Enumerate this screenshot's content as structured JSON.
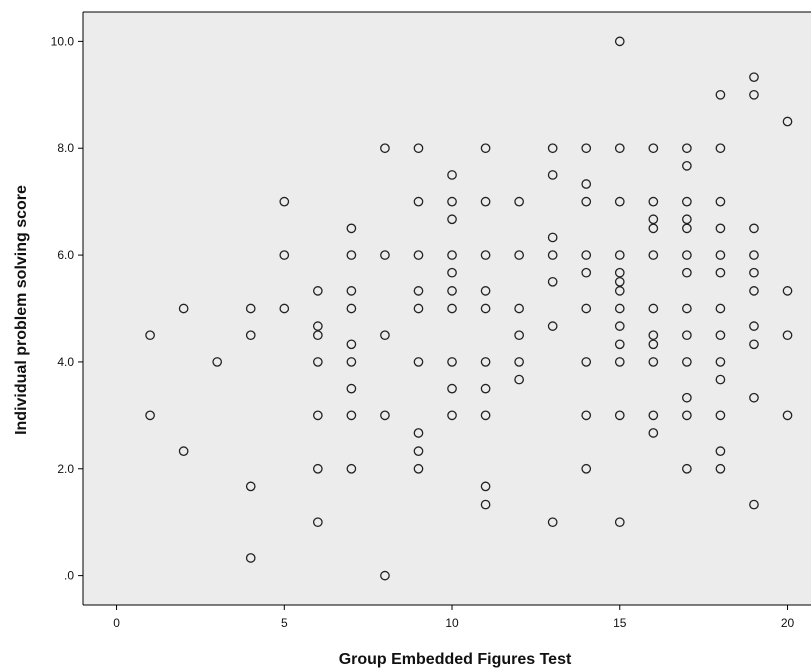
{
  "chart_data": {
    "type": "scatter",
    "xlabel": "Group Embedded Figures Test",
    "ylabel": "Individual problem solving score",
    "xlim": [
      -1,
      20.7
    ],
    "ylim": [
      -0.55,
      10.55
    ],
    "xticks": [
      0,
      5,
      10,
      15,
      20
    ],
    "xtick_labels": [
      "0",
      "5",
      "10",
      "15",
      "20"
    ],
    "yticks": [
      0,
      2,
      4,
      6,
      8,
      10
    ],
    "ytick_labels": [
      ".0",
      "2.0",
      "4.0",
      "6.0",
      "8.0",
      "10.0"
    ],
    "grid": false,
    "plot_background": "#ececec",
    "marker": "hollow-circle",
    "points": [
      [
        1,
        4.5
      ],
      [
        1,
        3.0
      ],
      [
        2,
        5.0
      ],
      [
        2,
        2.33
      ],
      [
        3,
        4.0
      ],
      [
        4,
        5.0
      ],
      [
        4,
        4.5
      ],
      [
        4,
        1.67
      ],
      [
        4,
        0.33
      ],
      [
        5,
        7.0
      ],
      [
        5,
        6.0
      ],
      [
        5,
        5.0
      ],
      [
        6,
        5.33
      ],
      [
        6,
        4.67
      ],
      [
        6,
        4.5
      ],
      [
        6,
        4.0
      ],
      [
        6,
        3.0
      ],
      [
        6,
        2.0
      ],
      [
        6,
        1.0
      ],
      [
        7,
        6.5
      ],
      [
        7,
        6.0
      ],
      [
        7,
        5.33
      ],
      [
        7,
        5.0
      ],
      [
        7,
        4.33
      ],
      [
        7,
        4.0
      ],
      [
        7,
        3.5
      ],
      [
        7,
        3.0
      ],
      [
        7,
        2.0
      ],
      [
        8,
        8.0
      ],
      [
        8,
        6.0
      ],
      [
        8,
        4.5
      ],
      [
        8,
        3.0
      ],
      [
        8,
        0.0
      ],
      [
        9,
        8.0
      ],
      [
        9,
        7.0
      ],
      [
        9,
        6.0
      ],
      [
        9,
        5.33
      ],
      [
        9,
        5.0
      ],
      [
        9,
        4.0
      ],
      [
        9,
        2.67
      ],
      [
        9,
        2.33
      ],
      [
        9,
        2.0
      ],
      [
        10,
        7.5
      ],
      [
        10,
        7.0
      ],
      [
        10,
        6.67
      ],
      [
        10,
        6.0
      ],
      [
        10,
        5.67
      ],
      [
        10,
        5.33
      ],
      [
        10,
        5.0
      ],
      [
        10,
        4.0
      ],
      [
        10,
        3.5
      ],
      [
        10,
        3.0
      ],
      [
        11,
        8.0
      ],
      [
        11,
        7.0
      ],
      [
        11,
        6.0
      ],
      [
        11,
        5.33
      ],
      [
        11,
        5.0
      ],
      [
        11,
        4.0
      ],
      [
        11,
        3.5
      ],
      [
        11,
        3.0
      ],
      [
        11,
        1.67
      ],
      [
        11,
        1.33
      ],
      [
        12,
        7.0
      ],
      [
        12,
        6.0
      ],
      [
        12,
        5.0
      ],
      [
        12,
        4.5
      ],
      [
        12,
        4.0
      ],
      [
        12,
        3.67
      ],
      [
        13,
        8.0
      ],
      [
        13,
        7.5
      ],
      [
        13,
        6.33
      ],
      [
        13,
        6.0
      ],
      [
        13,
        5.5
      ],
      [
        13,
        4.67
      ],
      [
        13,
        1.0
      ],
      [
        14,
        8.0
      ],
      [
        14,
        7.33
      ],
      [
        14,
        7.0
      ],
      [
        14,
        6.0
      ],
      [
        14,
        5.67
      ],
      [
        14,
        5.0
      ],
      [
        14,
        4.0
      ],
      [
        14,
        3.0
      ],
      [
        14,
        2.0
      ],
      [
        15,
        10.0
      ],
      [
        15,
        8.0
      ],
      [
        15,
        7.0
      ],
      [
        15,
        6.0
      ],
      [
        15,
        5.67
      ],
      [
        15,
        5.5
      ],
      [
        15,
        5.33
      ],
      [
        15,
        5.0
      ],
      [
        15,
        4.67
      ],
      [
        15,
        4.33
      ],
      [
        15,
        4.0
      ],
      [
        15,
        3.0
      ],
      [
        15,
        1.0
      ],
      [
        16,
        8.0
      ],
      [
        16,
        7.0
      ],
      [
        16,
        6.67
      ],
      [
        16,
        6.5
      ],
      [
        16,
        6.0
      ],
      [
        16,
        5.0
      ],
      [
        16,
        4.5
      ],
      [
        16,
        4.33
      ],
      [
        16,
        4.0
      ],
      [
        16,
        3.0
      ],
      [
        16,
        2.67
      ],
      [
        17,
        8.0
      ],
      [
        17,
        7.67
      ],
      [
        17,
        7.0
      ],
      [
        17,
        6.67
      ],
      [
        17,
        6.5
      ],
      [
        17,
        6.0
      ],
      [
        17,
        5.67
      ],
      [
        17,
        5.0
      ],
      [
        17,
        4.5
      ],
      [
        17,
        4.0
      ],
      [
        17,
        3.33
      ],
      [
        17,
        3.0
      ],
      [
        17,
        2.0
      ],
      [
        18,
        9.0
      ],
      [
        18,
        8.0
      ],
      [
        18,
        7.0
      ],
      [
        18,
        6.5
      ],
      [
        18,
        6.0
      ],
      [
        18,
        5.67
      ],
      [
        18,
        5.0
      ],
      [
        18,
        4.5
      ],
      [
        18,
        4.0
      ],
      [
        18,
        3.67
      ],
      [
        18,
        3.0
      ],
      [
        18,
        2.33
      ],
      [
        18,
        2.0
      ],
      [
        19,
        9.33
      ],
      [
        19,
        9.0
      ],
      [
        19,
        6.5
      ],
      [
        19,
        6.0
      ],
      [
        19,
        5.67
      ],
      [
        19,
        5.33
      ],
      [
        19,
        4.67
      ],
      [
        19,
        4.33
      ],
      [
        19,
        3.33
      ],
      [
        19,
        1.33
      ],
      [
        20,
        8.5
      ],
      [
        20,
        5.33
      ],
      [
        20,
        4.5
      ],
      [
        20,
        3.0
      ]
    ]
  }
}
